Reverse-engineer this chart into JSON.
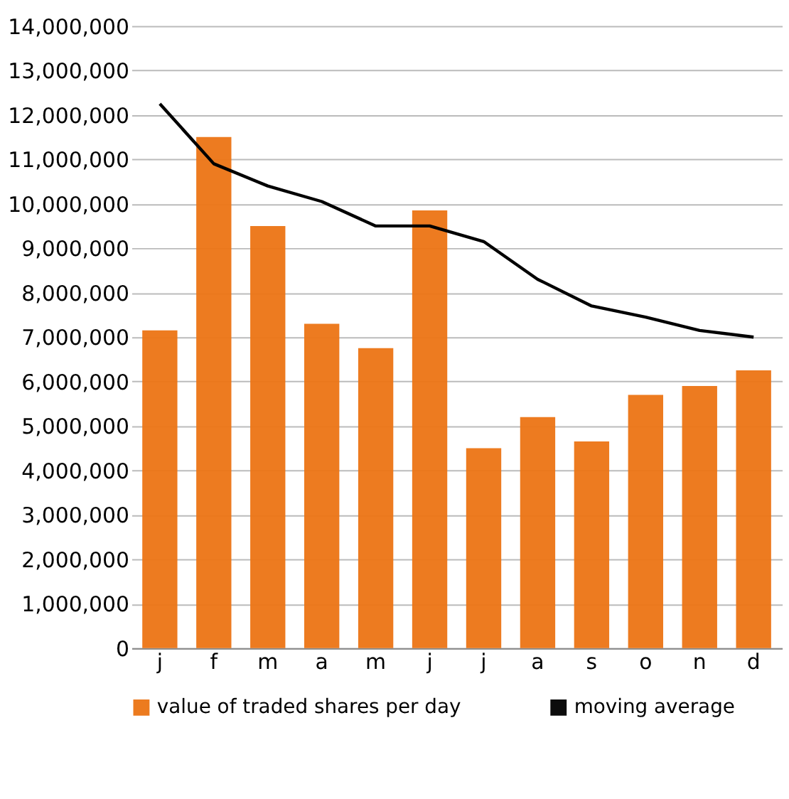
{
  "chart_data": {
    "type": "bar",
    "categories": [
      "j",
      "f",
      "m",
      "a",
      "m",
      "j",
      "j",
      "a",
      "s",
      "o",
      "n",
      "d"
    ],
    "series": [
      {
        "name": "value of traded shares per day",
        "color": "#ec7414",
        "values": [
          7150000,
          11500000,
          9500000,
          7300000,
          6750000,
          9850000,
          4500000,
          5200000,
          4650000,
          5700000,
          5900000,
          6250000
        ]
      },
      {
        "name": "moving average",
        "type": "line",
        "color": "#000000",
        "values": [
          12250000,
          10900000,
          10400000,
          10050000,
          9500000,
          9500000,
          9150000,
          8300000,
          7700000,
          7450000,
          7150000,
          7000000
        ]
      }
    ],
    "ylim": [
      0,
      14000000
    ],
    "yticks": [
      0,
      {
        "value": 1000000,
        "label": "1,000,000"
      },
      {
        "value": 2000000,
        "label": "2,000,000"
      },
      {
        "value": 3000000,
        "label": "3,000,000"
      },
      {
        "value": 4000000,
        "label": "4,000,000"
      },
      {
        "value": 5000000,
        "label": "5,000,000"
      },
      {
        "value": 6000000,
        "label": "6,000,000"
      },
      {
        "value": 7000000,
        "label": "7,000,000"
      },
      {
        "value": 8000000,
        "label": "8,000,000"
      },
      {
        "value": 9000000,
        "label": "9,000,000"
      },
      {
        "value": 10000000,
        "label": "10,000,000"
      },
      {
        "value": 11000000,
        "label": "11,000,000"
      },
      {
        "value": 12000000,
        "label": "12,000,000"
      },
      {
        "value": 13000000,
        "label": "13,000,000"
      },
      {
        "value": 14000000,
        "label": "14,000,000"
      }
    ],
    "grid": "y",
    "legend": "bottom",
    "marker": "none",
    "line_style": "solid"
  }
}
